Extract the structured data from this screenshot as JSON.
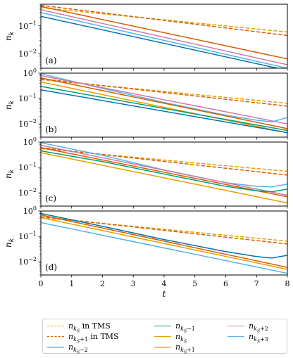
{
  "chart_data": [
    {
      "type": "line",
      "panel_label": "(a)",
      "ylabel": "n_k",
      "xlim": [
        0,
        8
      ],
      "yscale": "log",
      "ylim": [
        0.003,
        0.6
      ],
      "yticks": [
        "10^-2",
        "10^-1"
      ],
      "series": [
        {
          "name": "n_{k_S} in TMS",
          "dashed": true,
          "color": "#e69f00",
          "x": [
            0,
            8
          ],
          "y": [
            0.45,
            0.06
          ]
        },
        {
          "name": "n_{k_S+1} in TMS",
          "dashed": true,
          "color": "#d55e00",
          "x": [
            0,
            8
          ],
          "y": [
            0.55,
            0.045
          ]
        },
        {
          "name": "n_{k_S+2}",
          "color": "#cc79a7",
          "x": [
            0,
            8
          ],
          "y": [
            0.38,
            0.004
          ]
        },
        {
          "name": "n_{k_S+1}",
          "color": "#d55e00",
          "x": [
            0,
            8
          ],
          "y": [
            0.5,
            0.0065
          ]
        },
        {
          "name": "n_{k_S+3}",
          "color": "#56b4e9",
          "x": [
            0,
            8
          ],
          "y": [
            0.3,
            0.003
          ]
        },
        {
          "name": "n_{k_S-2}",
          "color": "#0072b2",
          "x": [
            0,
            8
          ],
          "y": [
            0.22,
            0.0025
          ]
        }
      ]
    },
    {
      "type": "line",
      "panel_label": "(b)",
      "ylabel": "n_k",
      "xlim": [
        0,
        8
      ],
      "yscale": "log",
      "ylim": [
        0.003,
        1.0
      ],
      "yticks": [
        "10^-2",
        "10^-1",
        "10^0"
      ],
      "series": [
        {
          "name": "n_{k_S} in TMS",
          "dashed": true,
          "color": "#e69f00",
          "x": [
            0,
            8
          ],
          "y": [
            0.55,
            0.065
          ]
        },
        {
          "name": "n_{k_S+1} in TMS",
          "dashed": true,
          "color": "#d55e00",
          "x": [
            0,
            8
          ],
          "y": [
            0.6,
            0.05
          ]
        },
        {
          "name": "n_{k_S+3}",
          "color": "#56b4e9",
          "x": [
            0,
            2,
            4,
            6,
            7,
            7.5,
            8
          ],
          "y": [
            0.95,
            0.25,
            0.07,
            0.022,
            0.014,
            0.012,
            0.018
          ]
        },
        {
          "name": "n_{k_S+2}",
          "color": "#cc79a7",
          "x": [
            0,
            8
          ],
          "y": [
            0.8,
            0.01
          ]
        },
        {
          "name": "n_{k_S+1}",
          "color": "#d55e00",
          "x": [
            0,
            8
          ],
          "y": [
            0.65,
            0.0065
          ]
        },
        {
          "name": "n_{k_S}",
          "color": "#e69f00",
          "x": [
            0,
            8
          ],
          "y": [
            0.45,
            0.0045
          ]
        },
        {
          "name": "n_{k_S-1}",
          "color": "#009e73",
          "x": [
            0,
            8
          ],
          "y": [
            0.3,
            0.0055
          ]
        },
        {
          "name": "n_{k_S-2}",
          "color": "#0072b2",
          "x": [
            0,
            8
          ],
          "y": [
            0.22,
            0.0045
          ]
        }
      ]
    },
    {
      "type": "line",
      "panel_label": "(c)",
      "ylabel": "n_k",
      "xlim": [
        0,
        8
      ],
      "yscale": "log",
      "ylim": [
        0.003,
        1.0
      ],
      "yticks": [
        "10^-2",
        "10^-1",
        "10^0"
      ],
      "series": [
        {
          "name": "n_{k_S} in TMS",
          "dashed": true,
          "color": "#e69f00",
          "x": [
            0,
            8
          ],
          "y": [
            0.55,
            0.07
          ]
        },
        {
          "name": "n_{k_S+1} in TMS",
          "dashed": true,
          "color": "#d55e00",
          "x": [
            0,
            8
          ],
          "y": [
            0.6,
            0.05
          ]
        },
        {
          "name": "n_{k_S+3}",
          "color": "#56b4e9",
          "x": [
            0,
            2,
            4,
            6,
            7,
            7.5,
            8
          ],
          "y": [
            0.95,
            0.3,
            0.08,
            0.025,
            0.018,
            0.017,
            0.022
          ]
        },
        {
          "name": "n_{k_S+2}",
          "color": "#cc79a7",
          "x": [
            0,
            8
          ],
          "y": [
            0.75,
            0.008
          ]
        },
        {
          "name": "n_{k_S+1}",
          "color": "#d55e00",
          "x": [
            0,
            8
          ],
          "y": [
            0.6,
            0.007
          ]
        },
        {
          "name": "n_{k_S-1}",
          "color": "#009e73",
          "x": [
            0,
            2,
            4,
            6,
            7,
            7.5,
            8
          ],
          "y": [
            0.45,
            0.17,
            0.055,
            0.018,
            0.012,
            0.011,
            0.014
          ]
        },
        {
          "name": "n_{k_S}",
          "color": "#e69f00",
          "x": [
            0,
            8
          ],
          "y": [
            0.38,
            0.004
          ]
        }
      ]
    },
    {
      "type": "line",
      "panel_label": "(d)",
      "ylabel": "n_k",
      "xlabel": "t",
      "xlim": [
        0,
        8
      ],
      "xticks": [
        0,
        1,
        2,
        3,
        4,
        5,
        6,
        7,
        8
      ],
      "yscale": "log",
      "ylim": [
        0.003,
        1.0
      ],
      "yticks": [
        "10^-2",
        "10^-1",
        "10^0"
      ],
      "series": [
        {
          "name": "n_{k_S} in TMS",
          "dashed": true,
          "color": "#e69f00",
          "x": [
            0,
            8
          ],
          "y": [
            0.55,
            0.065
          ]
        },
        {
          "name": "n_{k_S+1} in TMS",
          "dashed": true,
          "color": "#d55e00",
          "x": [
            0,
            8
          ],
          "y": [
            0.6,
            0.05
          ]
        },
        {
          "name": "n_{k_S-2}",
          "color": "#0072b2",
          "x": [
            0,
            2,
            4,
            6,
            7,
            7.5,
            8
          ],
          "y": [
            0.8,
            0.25,
            0.075,
            0.025,
            0.016,
            0.014,
            0.018
          ]
        },
        {
          "name": "n_{k_S+1}",
          "color": "#d55e00",
          "x": [
            0,
            8
          ],
          "y": [
            0.7,
            0.006
          ]
        },
        {
          "name": "n_{k_S}",
          "color": "#e69f00",
          "x": [
            0,
            8
          ],
          "y": [
            0.55,
            0.005
          ]
        },
        {
          "name": "n_{k_S+3}",
          "color": "#56b4e9",
          "x": [
            0,
            8
          ],
          "y": [
            0.35,
            0.0035
          ]
        }
      ]
    }
  ],
  "legend": {
    "entries": [
      {
        "main": "n",
        "sub": "k",
        "subsub": "S",
        "tail": "",
        "suffix": " in TMS",
        "color": "#e69f00",
        "dashed": true
      },
      {
        "main": "n",
        "sub": "k",
        "subsub": "S",
        "tail": "+1",
        "suffix": " in TMS",
        "color": "#d55e00",
        "dashed": true
      },
      {
        "main": "n",
        "sub": "k",
        "subsub": "S",
        "tail": "−2",
        "suffix": "",
        "color": "#0072b2",
        "dashed": false
      },
      {
        "main": "n",
        "sub": "k",
        "subsub": "S",
        "tail": "−1",
        "suffix": "",
        "color": "#009e73",
        "dashed": false
      },
      {
        "main": "n",
        "sub": "k",
        "subsub": "S",
        "tail": "",
        "suffix": "",
        "color": "#e69f00",
        "dashed": false
      },
      {
        "main": "n",
        "sub": "k",
        "subsub": "S",
        "tail": "+1",
        "suffix": "",
        "color": "#d55e00",
        "dashed": false
      },
      {
        "main": "n",
        "sub": "k",
        "subsub": "S",
        "tail": "+2",
        "suffix": "",
        "color": "#cc79a7",
        "dashed": false
      },
      {
        "main": "n",
        "sub": "k",
        "subsub": "S",
        "tail": "+3",
        "suffix": "",
        "color": "#56b4e9",
        "dashed": false
      }
    ]
  }
}
